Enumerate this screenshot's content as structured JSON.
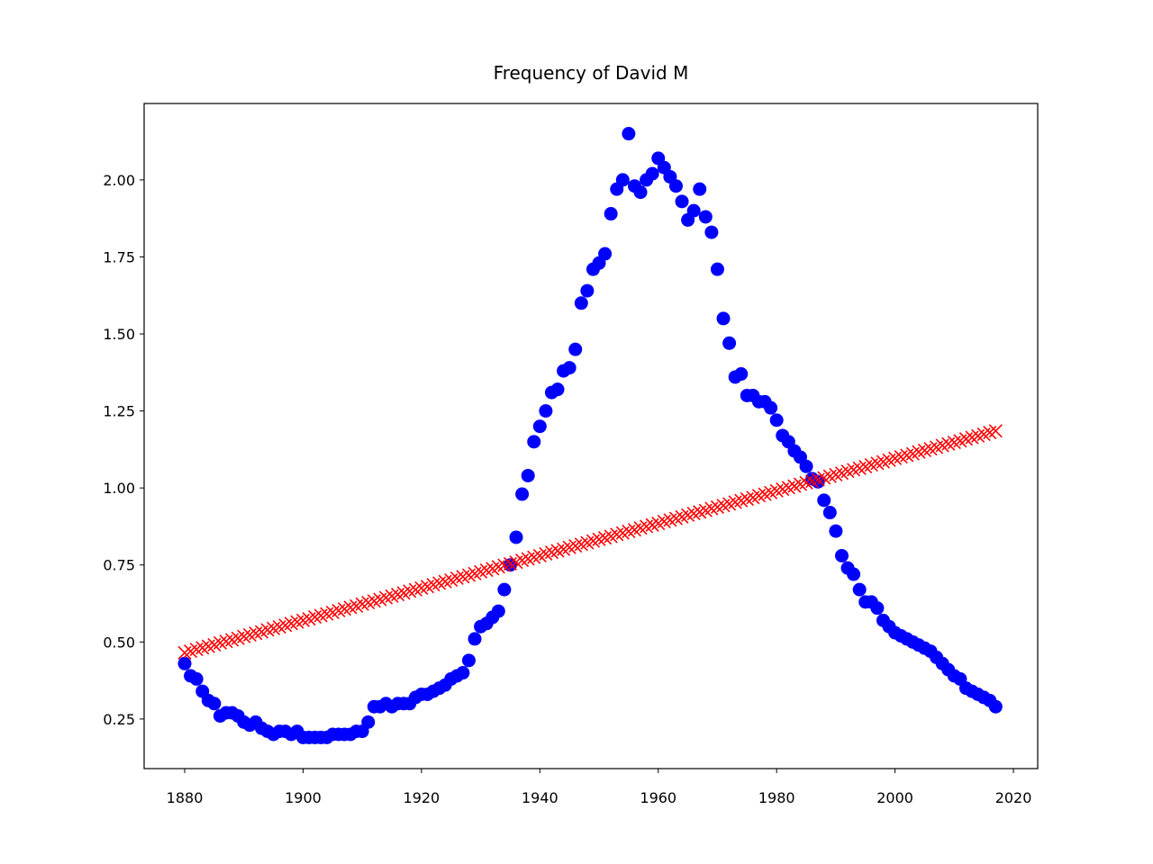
{
  "chart_data": {
    "type": "scatter",
    "title": "Frequency of David M",
    "x": [
      1880,
      1881,
      1882,
      1883,
      1884,
      1885,
      1886,
      1887,
      1888,
      1889,
      1890,
      1891,
      1892,
      1893,
      1894,
      1895,
      1896,
      1897,
      1898,
      1899,
      1900,
      1901,
      1902,
      1903,
      1904,
      1905,
      1906,
      1907,
      1908,
      1909,
      1910,
      1911,
      1912,
      1913,
      1914,
      1915,
      1916,
      1917,
      1918,
      1919,
      1920,
      1921,
      1922,
      1923,
      1924,
      1925,
      1926,
      1927,
      1928,
      1929,
      1930,
      1931,
      1932,
      1933,
      1934,
      1935,
      1936,
      1937,
      1938,
      1939,
      1940,
      1941,
      1942,
      1943,
      1944,
      1945,
      1946,
      1947,
      1948,
      1949,
      1950,
      1951,
      1952,
      1953,
      1954,
      1955,
      1956,
      1957,
      1958,
      1959,
      1960,
      1961,
      1962,
      1963,
      1964,
      1965,
      1966,
      1967,
      1968,
      1969,
      1970,
      1971,
      1972,
      1973,
      1974,
      1975,
      1976,
      1977,
      1978,
      1979,
      1980,
      1981,
      1982,
      1983,
      1984,
      1985,
      1986,
      1987,
      1988,
      1989,
      1990,
      1991,
      1992,
      1993,
      1994,
      1995,
      1996,
      1997,
      1998,
      1999,
      2000,
      2001,
      2002,
      2003,
      2004,
      2005,
      2006,
      2007,
      2008,
      2009,
      2010,
      2011,
      2012,
      2013,
      2014,
      2015,
      2016,
      2017
    ],
    "series": [
      {
        "marker": "o",
        "color": "#0000ff",
        "values": [
          0.43,
          0.39,
          0.38,
          0.34,
          0.31,
          0.3,
          0.26,
          0.27,
          0.27,
          0.26,
          0.24,
          0.23,
          0.24,
          0.22,
          0.21,
          0.2,
          0.21,
          0.21,
          0.2,
          0.21,
          0.19,
          0.19,
          0.19,
          0.19,
          0.19,
          0.2,
          0.2,
          0.2,
          0.2,
          0.21,
          0.21,
          0.24,
          0.29,
          0.29,
          0.3,
          0.29,
          0.3,
          0.3,
          0.3,
          0.32,
          0.33,
          0.33,
          0.34,
          0.35,
          0.36,
          0.38,
          0.39,
          0.4,
          0.44,
          0.51,
          0.55,
          0.56,
          0.58,
          0.6,
          0.67,
          0.75,
          0.84,
          0.98,
          1.04,
          1.15,
          1.2,
          1.25,
          1.31,
          1.32,
          1.38,
          1.39,
          1.45,
          1.6,
          1.64,
          1.71,
          1.73,
          1.76,
          1.89,
          1.97,
          2.0,
          2.15,
          1.98,
          1.96,
          2.0,
          2.02,
          2.07,
          2.04,
          2.01,
          1.98,
          1.93,
          1.87,
          1.9,
          1.97,
          1.88,
          1.83,
          1.71,
          1.55,
          1.47,
          1.36,
          1.37,
          1.3,
          1.3,
          1.28,
          1.28,
          1.26,
          1.22,
          1.17,
          1.15,
          1.12,
          1.1,
          1.07,
          1.03,
          1.02,
          0.96,
          0.92,
          0.86,
          0.78,
          0.74,
          0.72,
          0.67,
          0.63,
          0.63,
          0.61,
          0.57,
          0.55,
          0.53,
          0.52,
          0.51,
          0.5,
          0.49,
          0.48,
          0.47,
          0.45,
          0.43,
          0.41,
          0.39,
          0.38,
          0.35,
          0.34,
          0.33,
          0.32,
          0.31,
          0.29
        ]
      },
      {
        "marker": "x",
        "color": "#ff0000",
        "values": [
          0.465,
          0.47,
          0.476,
          0.481,
          0.486,
          0.491,
          0.497,
          0.502,
          0.507,
          0.512,
          0.518,
          0.523,
          0.528,
          0.533,
          0.539,
          0.544,
          0.549,
          0.554,
          0.56,
          0.565,
          0.57,
          0.575,
          0.581,
          0.586,
          0.591,
          0.596,
          0.602,
          0.607,
          0.612,
          0.617,
          0.623,
          0.628,
          0.633,
          0.638,
          0.644,
          0.649,
          0.654,
          0.659,
          0.665,
          0.67,
          0.675,
          0.68,
          0.686,
          0.691,
          0.696,
          0.701,
          0.707,
          0.712,
          0.717,
          0.722,
          0.728,
          0.733,
          0.738,
          0.744,
          0.749,
          0.754,
          0.759,
          0.765,
          0.77,
          0.775,
          0.78,
          0.786,
          0.791,
          0.796,
          0.801,
          0.807,
          0.812,
          0.817,
          0.822,
          0.828,
          0.833,
          0.838,
          0.843,
          0.849,
          0.854,
          0.859,
          0.864,
          0.87,
          0.875,
          0.88,
          0.885,
          0.891,
          0.896,
          0.901,
          0.906,
          0.912,
          0.917,
          0.922,
          0.927,
          0.933,
          0.938,
          0.943,
          0.948,
          0.954,
          0.959,
          0.964,
          0.969,
          0.975,
          0.98,
          0.985,
          0.991,
          0.996,
          1.001,
          1.006,
          1.012,
          1.017,
          1.022,
          1.027,
          1.033,
          1.038,
          1.043,
          1.048,
          1.054,
          1.059,
          1.064,
          1.069,
          1.075,
          1.08,
          1.085,
          1.09,
          1.096,
          1.101,
          1.106,
          1.111,
          1.117,
          1.122,
          1.127,
          1.132,
          1.138,
          1.143,
          1.148,
          1.153,
          1.159,
          1.164,
          1.169,
          1.174,
          1.18,
          1.185
        ]
      }
    ],
    "xlim": [
      1873.15,
      2024.1
    ],
    "xticks": [
      1880,
      1900,
      1920,
      1940,
      1960,
      1980,
      2000,
      2020
    ],
    "ylim": [
      0.089,
      2.248
    ],
    "yticks": [
      0.25,
      {
        "value": 0.5,
        "label": "0.50"
      },
      0.75,
      {
        "value": 1,
        "label": "1.00"
      },
      1.25,
      {
        "value": 1.5,
        "label": "1.50"
      },
      1.75,
      {
        "value": 2,
        "label": "2.00"
      }
    ],
    "grid": false
  }
}
